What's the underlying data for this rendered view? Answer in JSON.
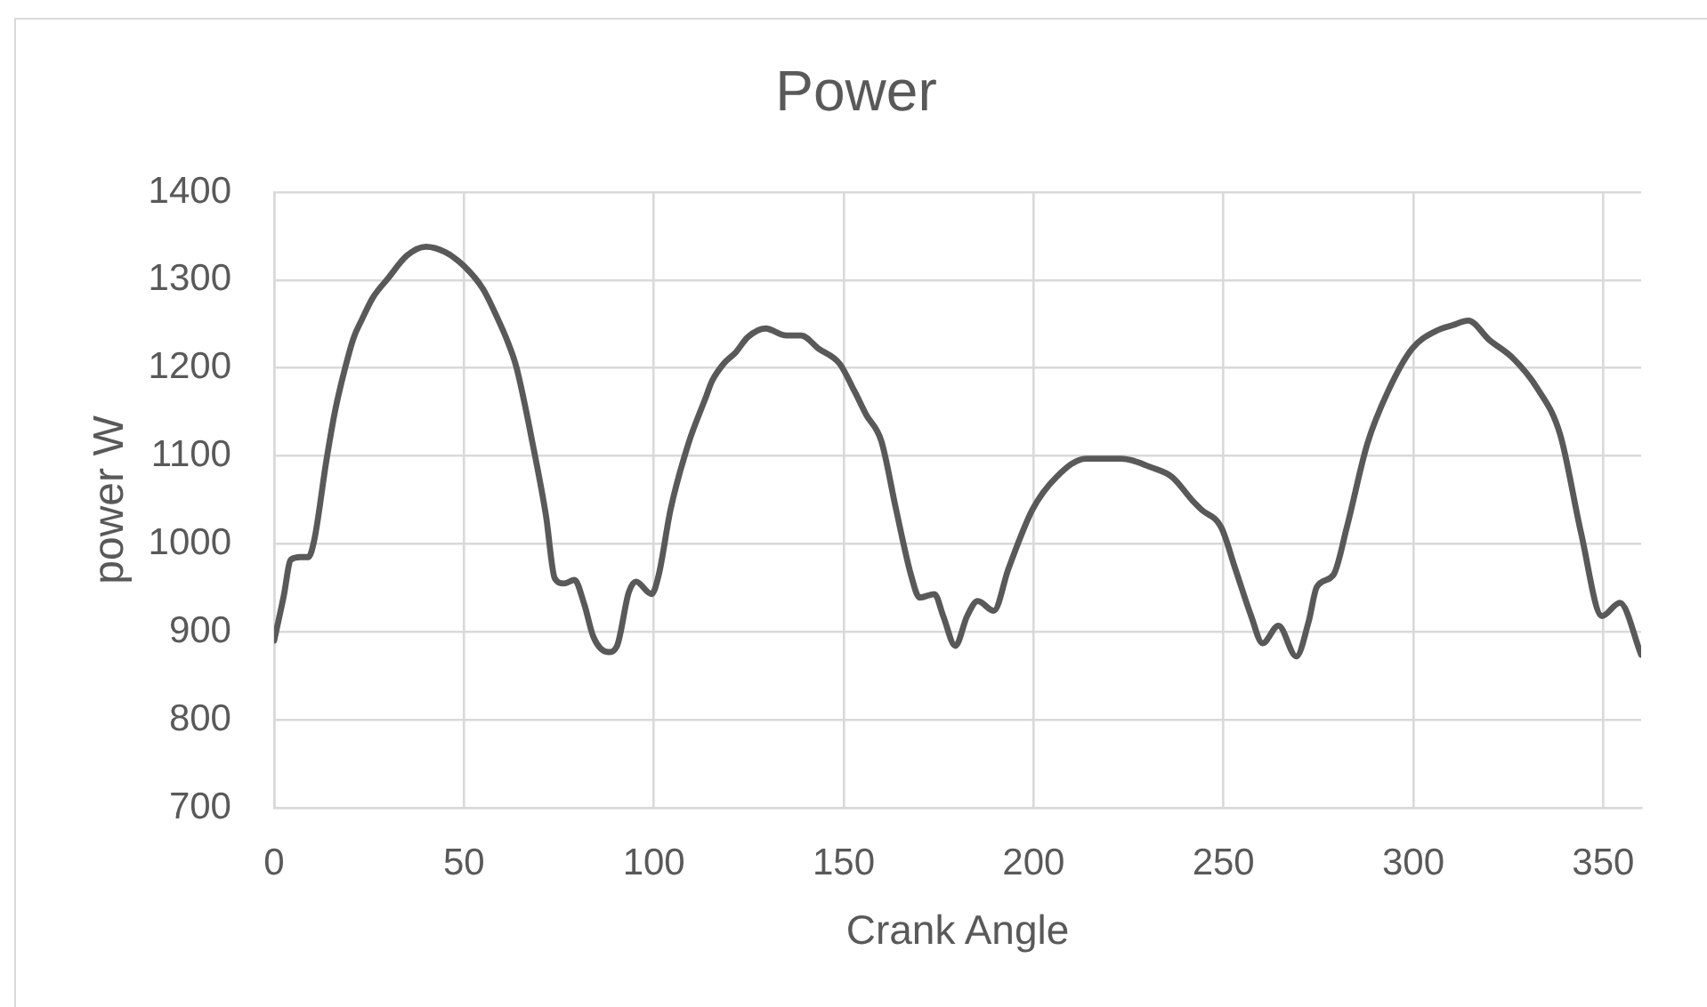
{
  "chart_data": {
    "type": "line",
    "title": "Power",
    "xlabel": "Crank Angle",
    "ylabel": "power W",
    "x": [
      0,
      2.5,
      4.4,
      7,
      9,
      10.6,
      13.7,
      16,
      18.4,
      21,
      23.1,
      26,
      30,
      35,
      40,
      45,
      50,
      55,
      59,
      61.5,
      63.8,
      68.4,
      71.6,
      73.9,
      76.3,
      79.1,
      81.7,
      84.1,
      88,
      90.3,
      93.4,
      95.3,
      99.4,
      101.3,
      104.4,
      109.1,
      113.8,
      115.3,
      118.4,
      121.6,
      124.7,
      129.4,
      134.9,
      138.8,
      143.4,
      148.9,
      152.8,
      155.9,
      159.9,
      163.8,
      167.7,
      170,
      173.9,
      176.2,
      179.4,
      182.5,
      185.3,
      189.5,
      193.4,
      199.7,
      206,
      213.8,
      223.1,
      231,
      236.5,
      241.9,
      244.2,
      249.4,
      253.1,
      257.3,
      260.3,
      264.5,
      269.2,
      272.4,
      274.6,
      279,
      282.5,
      287.9,
      293.4,
      299.7,
      305.9,
      310.6,
      314.5,
      320,
      326.3,
      332.5,
      338.7,
      344.2,
      349.7,
      354.4,
      360
    ],
    "values": [
      890,
      940,
      982,
      985,
      985,
      1005,
      1093,
      1150,
      1195,
      1235,
      1255,
      1280,
      1302,
      1328,
      1338,
      1332,
      1316,
      1290,
      1255,
      1230,
      1201,
      1107,
      1032,
      961,
      955,
      959,
      931,
      894,
      877,
      884,
      945,
      957,
      943,
      965,
      1039,
      1114,
      1168,
      1185,
      1205,
      1218,
      1235,
      1245,
      1237,
      1237,
      1222,
      1205,
      1174,
      1147,
      1117,
      1039,
      965,
      939,
      943,
      918,
      884,
      918,
      935,
      924,
      972,
      1039,
      1076,
      1097,
      1097,
      1087,
      1076,
      1049,
      1039,
      1019,
      972,
      918,
      887,
      907,
      872,
      911,
      951,
      965,
      1019,
      1114,
      1174,
      1222,
      1242,
      1249,
      1254,
      1232,
      1211,
      1178,
      1124,
      1012,
      918,
      933,
      874
    ],
    "color": "#595959",
    "xlim": [
      0,
      360
    ],
    "xticks": [
      0,
      50,
      100,
      150,
      200,
      250,
      300,
      350
    ],
    "ylim": [
      700,
      1400
    ],
    "yticks": [
      700,
      800,
      900,
      1000,
      1100,
      1200,
      1300,
      1400
    ],
    "grid": true,
    "legend": false,
    "marker": "none"
  }
}
